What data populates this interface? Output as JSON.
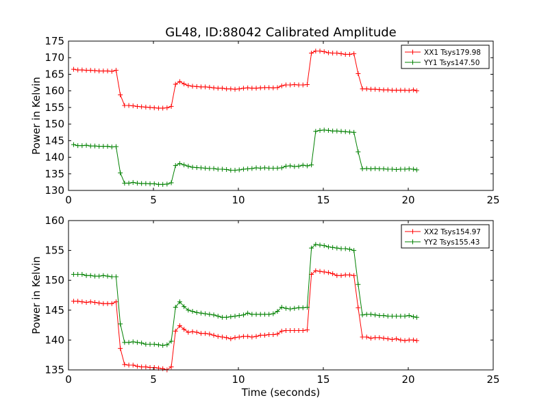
{
  "title": "GL48, ID:88042 Calibrated Amplitude",
  "chart_data": [
    {
      "type": "line",
      "xlabel": "",
      "ylabel": "Power in Kelvin",
      "xlim": [
        0,
        25
      ],
      "ylim": [
        130,
        175
      ],
      "xticks": [
        0,
        5,
        10,
        15,
        20,
        25
      ],
      "yticks": [
        130,
        135,
        140,
        145,
        150,
        155,
        160,
        165,
        170,
        175
      ],
      "legend_position": "top-right",
      "series": [
        {
          "name": "XX1 Tsys179.98",
          "color": "#ff0000",
          "marker": "plus",
          "x": [
            0.3,
            0.55,
            0.8,
            1.05,
            1.3,
            1.55,
            1.8,
            2.05,
            2.3,
            2.55,
            2.8,
            3.05,
            3.3,
            3.55,
            3.8,
            4.05,
            4.3,
            4.55,
            4.8,
            5.05,
            5.3,
            5.55,
            5.8,
            6.05,
            6.3,
            6.55,
            6.8,
            7.05,
            7.3,
            7.55,
            7.8,
            8.05,
            8.3,
            8.55,
            8.8,
            9.05,
            9.3,
            9.55,
            9.8,
            10.05,
            10.3,
            10.55,
            10.8,
            11.05,
            11.3,
            11.55,
            11.8,
            12.05,
            12.3,
            12.55,
            12.8,
            13.05,
            13.3,
            13.55,
            13.8,
            14.05,
            14.3,
            14.55,
            14.8,
            15.05,
            15.3,
            15.55,
            15.8,
            16.05,
            16.3,
            16.55,
            16.8,
            17.05,
            17.3,
            17.55,
            17.8,
            18.05,
            18.3,
            18.55,
            18.8,
            19.05,
            19.3,
            19.55,
            19.8,
            20.05,
            20.3,
            20.5
          ],
          "y": [
            166.5,
            166.3,
            166.3,
            166.2,
            166.2,
            166.1,
            166.0,
            166.0,
            166.0,
            165.9,
            166.2,
            158.8,
            155.6,
            155.6,
            155.5,
            155.3,
            155.2,
            155.1,
            155.0,
            154.9,
            154.8,
            154.8,
            154.9,
            155.3,
            162.0,
            162.8,
            162.1,
            161.6,
            161.4,
            161.3,
            161.2,
            161.2,
            161.1,
            160.9,
            160.8,
            160.8,
            160.6,
            160.6,
            160.5,
            160.6,
            160.8,
            160.9,
            160.8,
            160.8,
            160.9,
            161.0,
            161.0,
            160.9,
            161.0,
            161.5,
            161.8,
            161.8,
            161.9,
            161.8,
            161.8,
            161.9,
            171.4,
            172.0,
            172.0,
            171.8,
            171.5,
            171.4,
            171.4,
            171.2,
            171.0,
            171.0,
            171.2,
            165.2,
            160.6,
            160.6,
            160.5,
            160.5,
            160.4,
            160.3,
            160.3,
            160.2,
            160.2,
            160.2,
            160.2,
            160.1,
            160.3,
            160.0
          ]
        },
        {
          "name": "YY1 Tsys147.50",
          "color": "#008000",
          "marker": "plus",
          "x": [
            0.3,
            0.55,
            0.8,
            1.05,
            1.3,
            1.55,
            1.8,
            2.05,
            2.3,
            2.55,
            2.8,
            3.05,
            3.3,
            3.55,
            3.8,
            4.05,
            4.3,
            4.55,
            4.8,
            5.05,
            5.3,
            5.55,
            5.8,
            6.05,
            6.3,
            6.55,
            6.8,
            7.05,
            7.3,
            7.55,
            7.8,
            8.05,
            8.3,
            8.55,
            8.8,
            9.05,
            9.3,
            9.55,
            9.8,
            10.05,
            10.3,
            10.55,
            10.8,
            11.05,
            11.3,
            11.55,
            11.8,
            12.05,
            12.3,
            12.55,
            12.8,
            13.05,
            13.3,
            13.55,
            13.8,
            14.05,
            14.3,
            14.55,
            14.8,
            15.05,
            15.3,
            15.55,
            15.8,
            16.05,
            16.3,
            16.55,
            16.8,
            17.05,
            17.3,
            17.55,
            17.8,
            18.05,
            18.3,
            18.55,
            18.8,
            19.05,
            19.3,
            19.55,
            19.8,
            20.05,
            20.3,
            20.5
          ],
          "y": [
            143.8,
            143.5,
            143.5,
            143.6,
            143.4,
            143.4,
            143.3,
            143.3,
            143.3,
            143.1,
            143.2,
            135.3,
            132.2,
            132.2,
            132.4,
            132.2,
            132.1,
            132.1,
            132.0,
            132.0,
            131.8,
            131.8,
            131.9,
            132.3,
            137.5,
            138.1,
            137.7,
            137.3,
            137.0,
            136.9,
            136.8,
            136.7,
            136.6,
            136.6,
            136.4,
            136.4,
            136.3,
            136.1,
            136.1,
            136.2,
            136.4,
            136.5,
            136.6,
            136.8,
            136.7,
            136.8,
            136.7,
            136.7,
            136.7,
            136.8,
            137.3,
            137.4,
            137.2,
            137.3,
            137.6,
            137.4,
            137.7,
            147.8,
            148.1,
            148.2,
            148.1,
            147.9,
            147.9,
            147.8,
            147.7,
            147.6,
            147.5,
            141.6,
            136.5,
            136.6,
            136.5,
            136.6,
            136.5,
            136.5,
            136.4,
            136.4,
            136.3,
            136.4,
            136.4,
            136.5,
            136.4,
            136.2
          ]
        }
      ]
    },
    {
      "type": "line",
      "xlabel": "Time (seconds)",
      "ylabel": "Power in Kelvin",
      "xlim": [
        0,
        25
      ],
      "ylim": [
        135,
        160
      ],
      "xticks": [
        0,
        5,
        10,
        15,
        20,
        25
      ],
      "yticks": [
        135,
        140,
        145,
        150,
        155,
        160
      ],
      "legend_position": "top-right",
      "series": [
        {
          "name": "XX2 Tsys154.97",
          "color": "#ff0000",
          "marker": "plus",
          "x": [
            0.3,
            0.55,
            0.8,
            1.05,
            1.3,
            1.55,
            1.8,
            2.05,
            2.3,
            2.55,
            2.8,
            3.05,
            3.3,
            3.55,
            3.8,
            4.05,
            4.3,
            4.55,
            4.8,
            5.05,
            5.3,
            5.55,
            5.8,
            6.05,
            6.3,
            6.55,
            6.8,
            7.05,
            7.3,
            7.55,
            7.8,
            8.05,
            8.3,
            8.55,
            8.8,
            9.05,
            9.3,
            9.55,
            9.8,
            10.05,
            10.3,
            10.55,
            10.8,
            11.05,
            11.3,
            11.55,
            11.8,
            12.05,
            12.3,
            12.55,
            12.8,
            13.05,
            13.3,
            13.55,
            13.8,
            14.05,
            14.3,
            14.55,
            14.8,
            15.05,
            15.3,
            15.55,
            15.8,
            16.05,
            16.3,
            16.55,
            16.8,
            17.05,
            17.3,
            17.55,
            17.8,
            18.05,
            18.3,
            18.55,
            18.8,
            19.05,
            19.3,
            19.55,
            19.8,
            20.05,
            20.3,
            20.5
          ],
          "y": [
            146.5,
            146.5,
            146.4,
            146.3,
            146.4,
            146.3,
            146.2,
            146.1,
            146.1,
            146.1,
            146.4,
            138.6,
            135.9,
            135.8,
            135.8,
            135.6,
            135.5,
            135.5,
            135.4,
            135.4,
            135.3,
            135.2,
            135.0,
            135.5,
            141.5,
            142.4,
            141.8,
            141.3,
            141.4,
            141.3,
            141.1,
            141.1,
            141.0,
            140.8,
            140.6,
            140.5,
            140.4,
            140.2,
            140.4,
            140.5,
            140.6,
            140.6,
            140.5,
            140.6,
            140.8,
            140.8,
            140.9,
            140.9,
            141.0,
            141.5,
            141.6,
            141.6,
            141.6,
            141.6,
            141.6,
            141.7,
            151.0,
            151.6,
            151.5,
            151.4,
            151.3,
            151.1,
            150.8,
            150.8,
            150.9,
            150.9,
            150.8,
            145.4,
            140.5,
            140.5,
            140.3,
            140.4,
            140.4,
            140.3,
            140.2,
            140.1,
            140.2,
            140.0,
            139.9,
            140.0,
            140.0,
            139.9
          ]
        },
        {
          "name": "YY2 Tsys155.43",
          "color": "#008000",
          "marker": "plus",
          "x": [
            0.3,
            0.55,
            0.8,
            1.05,
            1.3,
            1.55,
            1.8,
            2.05,
            2.3,
            2.55,
            2.8,
            3.05,
            3.3,
            3.55,
            3.8,
            4.05,
            4.3,
            4.55,
            4.8,
            5.05,
            5.3,
            5.55,
            5.8,
            6.05,
            6.3,
            6.55,
            6.8,
            7.05,
            7.3,
            7.55,
            7.8,
            8.05,
            8.3,
            8.55,
            8.8,
            9.05,
            9.3,
            9.55,
            9.8,
            10.05,
            10.3,
            10.55,
            10.8,
            11.05,
            11.3,
            11.55,
            11.8,
            12.05,
            12.3,
            12.55,
            12.8,
            13.05,
            13.3,
            13.55,
            13.8,
            14.05,
            14.3,
            14.55,
            14.8,
            15.05,
            15.3,
            15.55,
            15.8,
            16.05,
            16.3,
            16.55,
            16.8,
            17.05,
            17.3,
            17.55,
            17.8,
            18.05,
            18.3,
            18.55,
            18.8,
            19.05,
            19.3,
            19.55,
            19.8,
            20.05,
            20.3,
            20.5
          ],
          "y": [
            151.0,
            151.0,
            151.0,
            150.8,
            150.8,
            150.7,
            150.7,
            150.8,
            150.7,
            150.6,
            150.6,
            142.7,
            139.6,
            139.6,
            139.7,
            139.6,
            139.5,
            139.3,
            139.3,
            139.3,
            139.2,
            139.1,
            139.2,
            139.8,
            145.5,
            146.4,
            145.6,
            145.0,
            144.8,
            144.6,
            144.5,
            144.4,
            144.3,
            144.2,
            144.0,
            143.8,
            143.8,
            143.9,
            144.0,
            144.1,
            144.2,
            144.5,
            144.3,
            144.3,
            144.3,
            144.3,
            144.3,
            144.4,
            144.8,
            145.5,
            145.3,
            145.2,
            145.3,
            145.4,
            145.4,
            145.5,
            155.4,
            156.0,
            155.9,
            155.8,
            155.6,
            155.5,
            155.4,
            155.3,
            155.3,
            155.2,
            155.0,
            149.3,
            144.2,
            144.3,
            144.3,
            144.2,
            144.1,
            144.1,
            144.0,
            144.0,
            144.0,
            144.0,
            144.0,
            144.1,
            143.9,
            143.8
          ]
        }
      ]
    }
  ]
}
